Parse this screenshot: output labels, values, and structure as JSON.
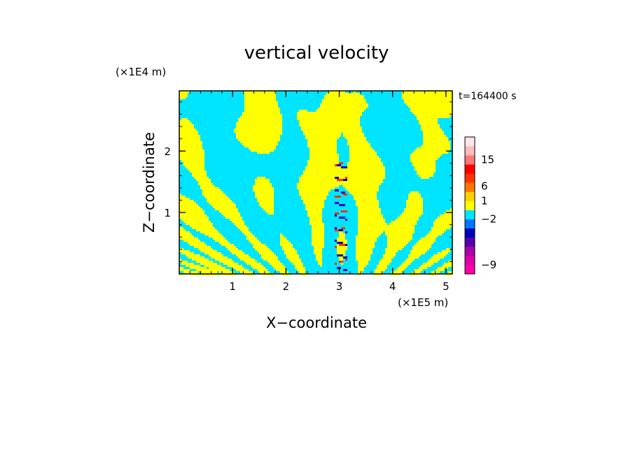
{
  "chart_data": {
    "type": "heatmap",
    "title": "vertical velocity",
    "xlabel": "X−coordinate",
    "ylabel": "Z−coordinate",
    "x_unit": "(×1E5 m)",
    "y_unit": "(×1E4 m)",
    "time_label": "t=164400 s",
    "xlim": [
      0,
      5.12
    ],
    "ylim": [
      0,
      2.98
    ],
    "x_ticks": [
      {
        "value": 1,
        "label": "1"
      },
      {
        "value": 2,
        "label": "2"
      },
      {
        "value": 3,
        "label": "3"
      },
      {
        "value": 4,
        "label": "4"
      },
      {
        "value": 5,
        "label": "5"
      }
    ],
    "y_ticks": [
      {
        "value": 1,
        "label": "1"
      },
      {
        "value": 2,
        "label": "2"
      }
    ],
    "colorbar": {
      "colors": [
        "#ff00aa",
        "#dd00aa",
        "#aa00aa",
        "#5500aa",
        "#0000bb",
        "#0077ff",
        "#00e5ff",
        "#ffff00",
        "#ffd000",
        "#ff7700",
        "#ff3300",
        "#ff0000",
        "#ff7777",
        "#ffbbbb",
        "#ffe6e6"
      ],
      "labels": [
        {
          "index": 1,
          "label": "−9"
        },
        {
          "index": 6,
          "label": "−2"
        },
        {
          "index": 8,
          "label": "1"
        },
        {
          "index": 9.6,
          "label": "6"
        },
        {
          "index": 12.5,
          "label": "15"
        }
      ]
    },
    "fill_colors": {
      "positive": "#ffff00",
      "negative": "#00e5ff",
      "strong_negative": "#0000bb",
      "strong_positive": "#ff3300"
    }
  }
}
